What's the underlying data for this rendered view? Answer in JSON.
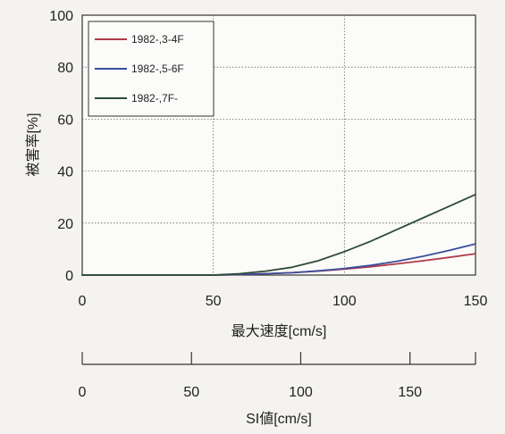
{
  "chart_data": {
    "type": "line",
    "title": "",
    "xlabel": "最大速度[cm/s]",
    "ylabel": "被害率[%]",
    "xlim": [
      0,
      150
    ],
    "ylim": [
      0,
      100
    ],
    "xticks": [
      "0",
      "50",
      "100",
      "150"
    ],
    "yticks": [
      "0",
      "20",
      "40",
      "60",
      "80",
      "100"
    ],
    "grid": "dotted",
    "legend_position": "top-left",
    "series": [
      {
        "name": "1982-,3-4F",
        "color": "#b03a48",
        "x": [
          50,
          60,
          70,
          80,
          90,
          100,
          110,
          120,
          130,
          140,
          150
        ],
        "y": [
          0,
          0.2,
          0.5,
          0.9,
          1.5,
          2.3,
          3.2,
          4.3,
          5.5,
          6.8,
          8.2
        ]
      },
      {
        "name": "1982-,5-6F",
        "color": "#3a4e9a",
        "x": [
          50,
          60,
          70,
          80,
          90,
          100,
          110,
          120,
          130,
          140,
          150
        ],
        "y": [
          0,
          0.2,
          0.5,
          0.9,
          1.6,
          2.5,
          3.7,
          5.3,
          7.2,
          9.5,
          12.0
        ]
      },
      {
        "name": "1982-,7F-",
        "color": "#2f4b38",
        "x": [
          50,
          60,
          70,
          80,
          90,
          100,
          110,
          120,
          130,
          140,
          150
        ],
        "y": [
          0,
          0.5,
          1.5,
          3.0,
          5.5,
          9.0,
          13.0,
          17.5,
          22.0,
          26.5,
          31.0
        ]
      }
    ],
    "secondary_axis": {
      "label": "SI値[cm/s]",
      "ticks": [
        "0",
        "50",
        "100",
        "150"
      ],
      "range": [
        0,
        180
      ]
    }
  }
}
